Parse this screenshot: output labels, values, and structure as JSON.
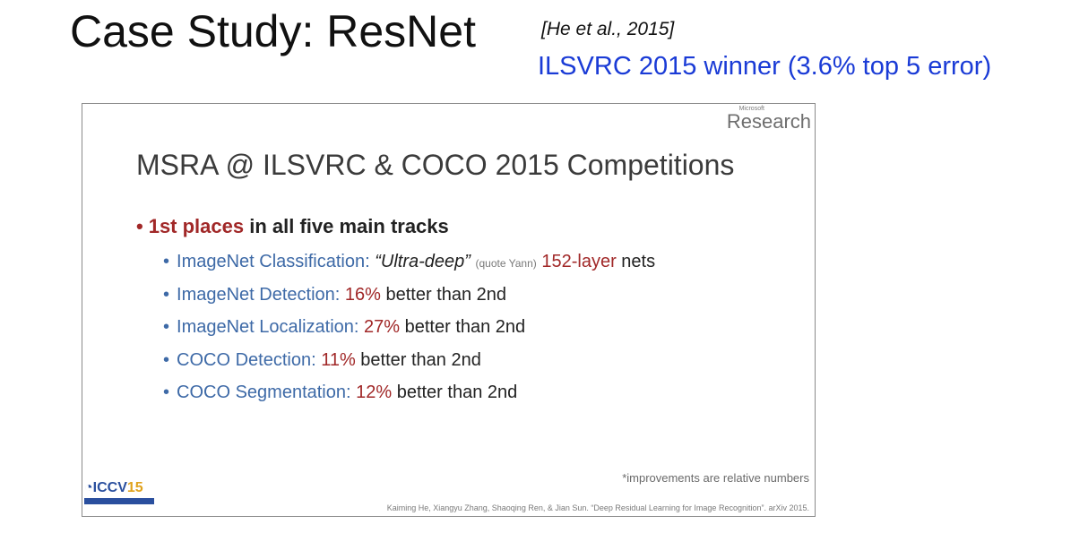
{
  "slide": {
    "title": "Case Study: ResNet",
    "citation": "[He et al., 2015]",
    "subtitle": "ILSVRC 2015 winner (3.6% top 5 error)"
  },
  "inset": {
    "logo_small": "Microsoft",
    "logo_big": "Research",
    "heading": "MSRA @ ILSVRC & COCO 2015 Competitions",
    "main_bullet": {
      "highlight": "1st places",
      "rest": " in all five main tracks"
    },
    "items": [
      {
        "name": "ImageNet Classification:",
        "quote": "“Ultra-deep”",
        "note": "(quote Yann)",
        "value": "152-layer",
        "tail": " nets"
      },
      {
        "name": "ImageNet Detection:",
        "value": "16%",
        "tail": " better than 2nd"
      },
      {
        "name": "ImageNet Localization:",
        "value": "27%",
        "tail": " better than 2nd"
      },
      {
        "name": "COCO Detection:",
        "value": "11%",
        "tail": " better than 2nd"
      },
      {
        "name": "COCO Segmentation:",
        "value": "12%",
        "tail": " better than 2nd"
      }
    ],
    "footnote": "*improvements are relative numbers",
    "conference_logo": {
      "main": "ICCV",
      "year": "15"
    },
    "reference": "Kaiming He, Xiangyu Zhang, Shaoqing Ren, & Jian Sun. “Deep Residual Learning for Image Recognition”. arXiv 2015."
  },
  "colors": {
    "subtitle_blue": "#1a3bd6",
    "highlight_red": "#a12828",
    "item_blue": "#3e6aa7"
  }
}
